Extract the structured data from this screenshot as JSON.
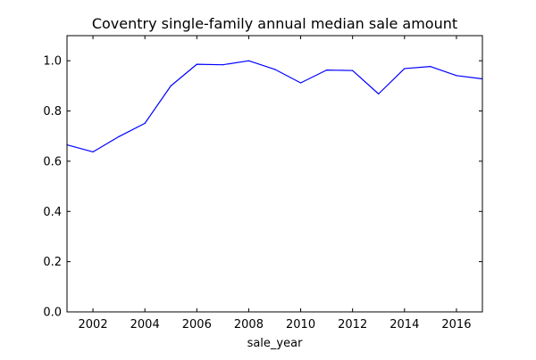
{
  "chart_data": {
    "type": "line",
    "title": "Coventry single-family annual median sale amount",
    "xlabel": "sale_year",
    "ylabel": "",
    "xlim": [
      2001,
      2017
    ],
    "ylim": [
      0.0,
      1.1
    ],
    "grid": false,
    "legend": false,
    "x_ticks": [
      2002,
      2004,
      2006,
      2008,
      2010,
      2012,
      2014,
      2016
    ],
    "x_tick_labels": [
      "2002",
      "2004",
      "2006",
      "2008",
      "2010",
      "2012",
      "2014",
      "2016"
    ],
    "y_ticks": [
      0.0,
      0.2,
      0.4,
      0.6,
      0.8,
      1.0
    ],
    "y_tick_labels": [
      "0.0",
      "0.2",
      "0.4",
      "0.6",
      "0.8",
      "1.0"
    ],
    "series": [
      {
        "x": [
          2001,
          2002,
          2003,
          2004,
          2005,
          2006,
          2007,
          2008,
          2009,
          2010,
          2011,
          2012,
          2013,
          2014,
          2015,
          2016,
          2017
        ],
        "values": [
          0.665,
          0.637,
          0.698,
          0.751,
          0.9,
          0.986,
          0.984,
          1.0,
          0.966,
          0.912,
          0.963,
          0.961,
          0.868,
          0.969,
          0.977,
          0.941,
          0.928
        ],
        "color": "#0000ff"
      }
    ]
  }
}
